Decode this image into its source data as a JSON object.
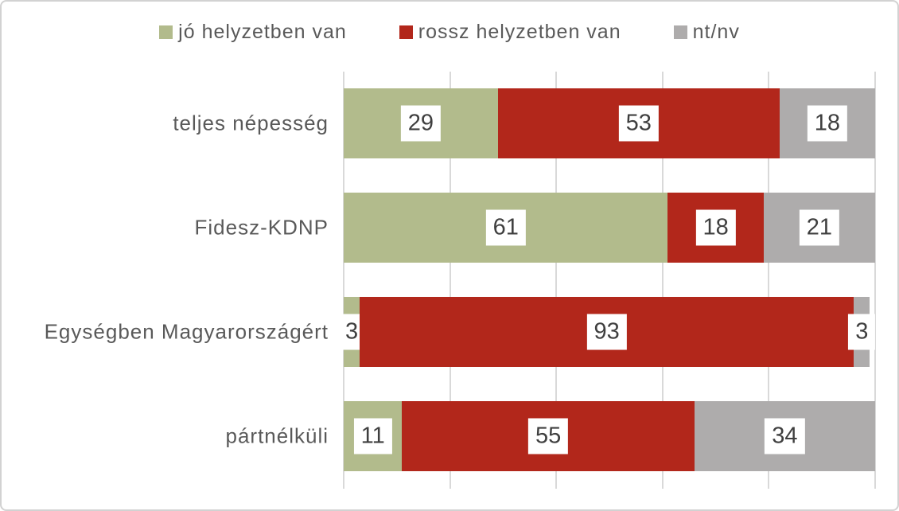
{
  "chart_data": {
    "type": "bar",
    "orientation": "horizontal",
    "stacked": true,
    "title": "",
    "xlabel": "",
    "ylabel": "",
    "xlim": [
      0,
      100
    ],
    "gridlines": [
      0,
      20,
      40,
      60,
      80,
      100
    ],
    "grid": true,
    "legend_position": "top",
    "value_labels": true,
    "categories": [
      "teljes népesség",
      "Fidesz-KDNP",
      "Egységben Magyarországért",
      "pártnélküli"
    ],
    "series": [
      {
        "name": "jó helyzetben van",
        "color": "#b2bb8c",
        "values": [
          29,
          61,
          3,
          11
        ]
      },
      {
        "name": "rossz helyzetben van",
        "color": "#b2271b",
        "values": [
          53,
          18,
          93,
          55
        ]
      },
      {
        "name": "nt/nv",
        "color": "#aeacac",
        "values": [
          18,
          21,
          3,
          34
        ]
      }
    ],
    "colors": {
      "background": "#ffffff",
      "border": "#d2d2d2",
      "gridline": "#d9d9d9",
      "category_text": "#595959",
      "legend_text": "#595959",
      "value_text": "#3f3f3f",
      "value_box_background": "#ffffff"
    }
  }
}
